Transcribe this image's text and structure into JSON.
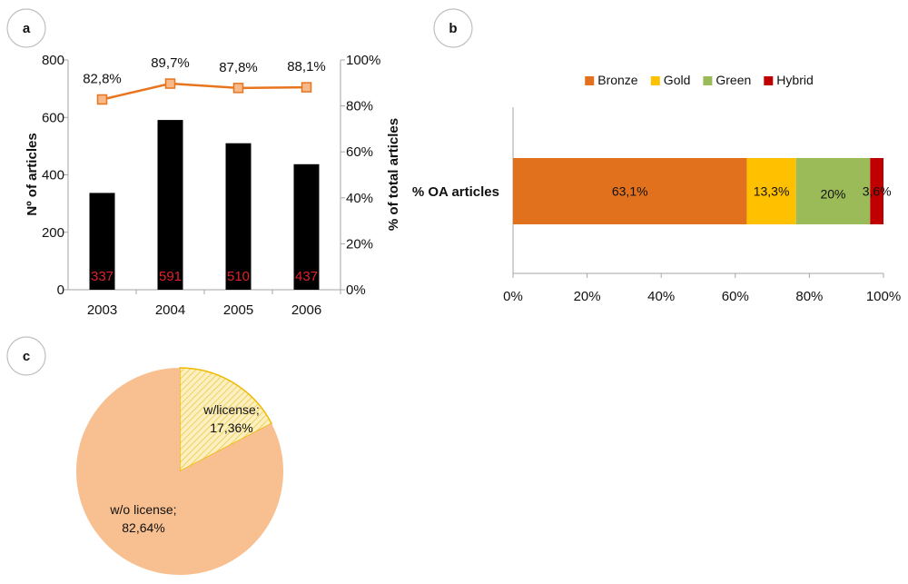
{
  "chart_data": [
    {
      "panel": "a",
      "type": "bar",
      "categories": [
        "2003",
        "2004",
        "2005",
        "2006"
      ],
      "values": [
        337,
        591,
        510,
        437
      ],
      "value_labels": [
        "337",
        "591",
        "510",
        "437"
      ],
      "ylabel": "Nº of articles",
      "ylim": [
        0,
        800
      ],
      "yticks": [
        "0",
        "200",
        "400",
        "600",
        "800"
      ],
      "bar_color": "#000000",
      "bar_label_color": "#e0202a",
      "line_series": {
        "type": "line",
        "values": [
          82.8,
          89.7,
          87.8,
          88.1
        ],
        "value_labels": [
          "82,8%",
          "89,7%",
          "87,8%",
          "88,1%"
        ],
        "color": "#e8741e",
        "marker_fill": "#f8b98a"
      },
      "y2label": "% of total articles",
      "y2lim": [
        0,
        100
      ],
      "y2ticks": [
        "0%",
        "20%",
        "40%",
        "60%",
        "80%",
        "100%"
      ],
      "grid": false
    },
    {
      "panel": "b",
      "type": "bar",
      "orientation": "horizontal-stacked",
      "categories": [
        "% OA articles"
      ],
      "series": [
        {
          "name": "Bronze",
          "values": [
            63.1
          ],
          "label": "63,1%",
          "color": "#e2711d"
        },
        {
          "name": "Gold",
          "values": [
            13.3
          ],
          "label": "13,3%",
          "color": "#ffc000"
        },
        {
          "name": "Green",
          "values": [
            20
          ],
          "label": "20%",
          "color": "#9bbb59"
        },
        {
          "name": "Hybrid",
          "values": [
            3.6
          ],
          "label": "3,6%",
          "color": "#c00000"
        }
      ],
      "xlim": [
        0,
        100
      ],
      "xticks": [
        "0%",
        "20%",
        "40%",
        "60%",
        "80%",
        "100%"
      ],
      "legend": "top",
      "grid": false
    },
    {
      "panel": "c",
      "type": "pie",
      "slices": [
        {
          "name": "w/license",
          "value": 17.36,
          "label_line1": "w/license;",
          "label_line2": "17,36%",
          "color": "#fdf0c0",
          "hatch_color": "#e8c43a",
          "border": "#f0b800"
        },
        {
          "name": "w/o license",
          "value": 82.64,
          "label_line1": "w/o license;",
          "label_line2": "82,64%",
          "color": "#f8c090"
        }
      ]
    }
  ],
  "panels": {
    "a": "a",
    "b": "b",
    "c": "c"
  },
  "colors": {
    "circle_border": "#bfbfbf",
    "axis": "#a6a6a6"
  }
}
